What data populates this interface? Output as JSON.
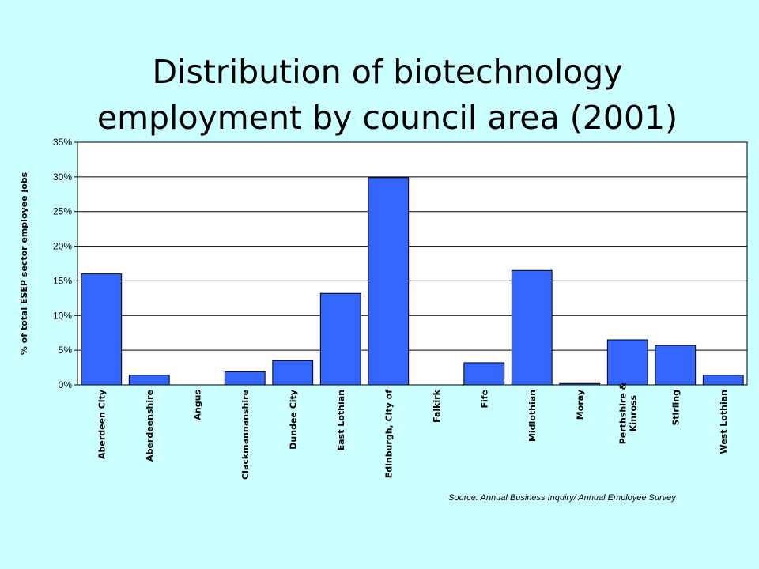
{
  "page": {
    "title_line1": "Distribution of biotechnology",
    "title_line2": "employment by council area (2001)",
    "source": "Source: Annual Business Inquiry/ Annual Employee Survey"
  },
  "chart_data": {
    "type": "bar",
    "title": "Distribution of biotechnology employment by council area (2001)",
    "xlabel": "",
    "ylabel": "% of total ESEP sector employee jobs",
    "categories": [
      "Aberdeen City",
      "Aberdeenshire",
      "Angus",
      "Clackmannanshire",
      "Dundee City",
      "East Lothian",
      "Edinburgh, City of",
      "Falkirk",
      "Fife",
      "Midlothian",
      "Moray",
      "Perthshire & Kinross",
      "Stirling",
      "West Lothian"
    ],
    "values": [
      16.0,
      1.4,
      0.0,
      1.9,
      3.5,
      13.2,
      29.9,
      0.0,
      3.2,
      16.5,
      0.2,
      6.5,
      5.7,
      1.4
    ],
    "ylim": [
      0,
      35
    ],
    "yticks": [
      0,
      5,
      10,
      15,
      20,
      25,
      30,
      35
    ],
    "ytick_labels": [
      "0%",
      "5%",
      "10%",
      "15%",
      "20%",
      "25%",
      "30%",
      "35%"
    ],
    "grid": true,
    "legend": "none",
    "colors": {
      "bar": "#3366ff",
      "bar_edge": "#000000",
      "plot_bg": "#ffffff",
      "page_bg": "#ccffff"
    }
  }
}
